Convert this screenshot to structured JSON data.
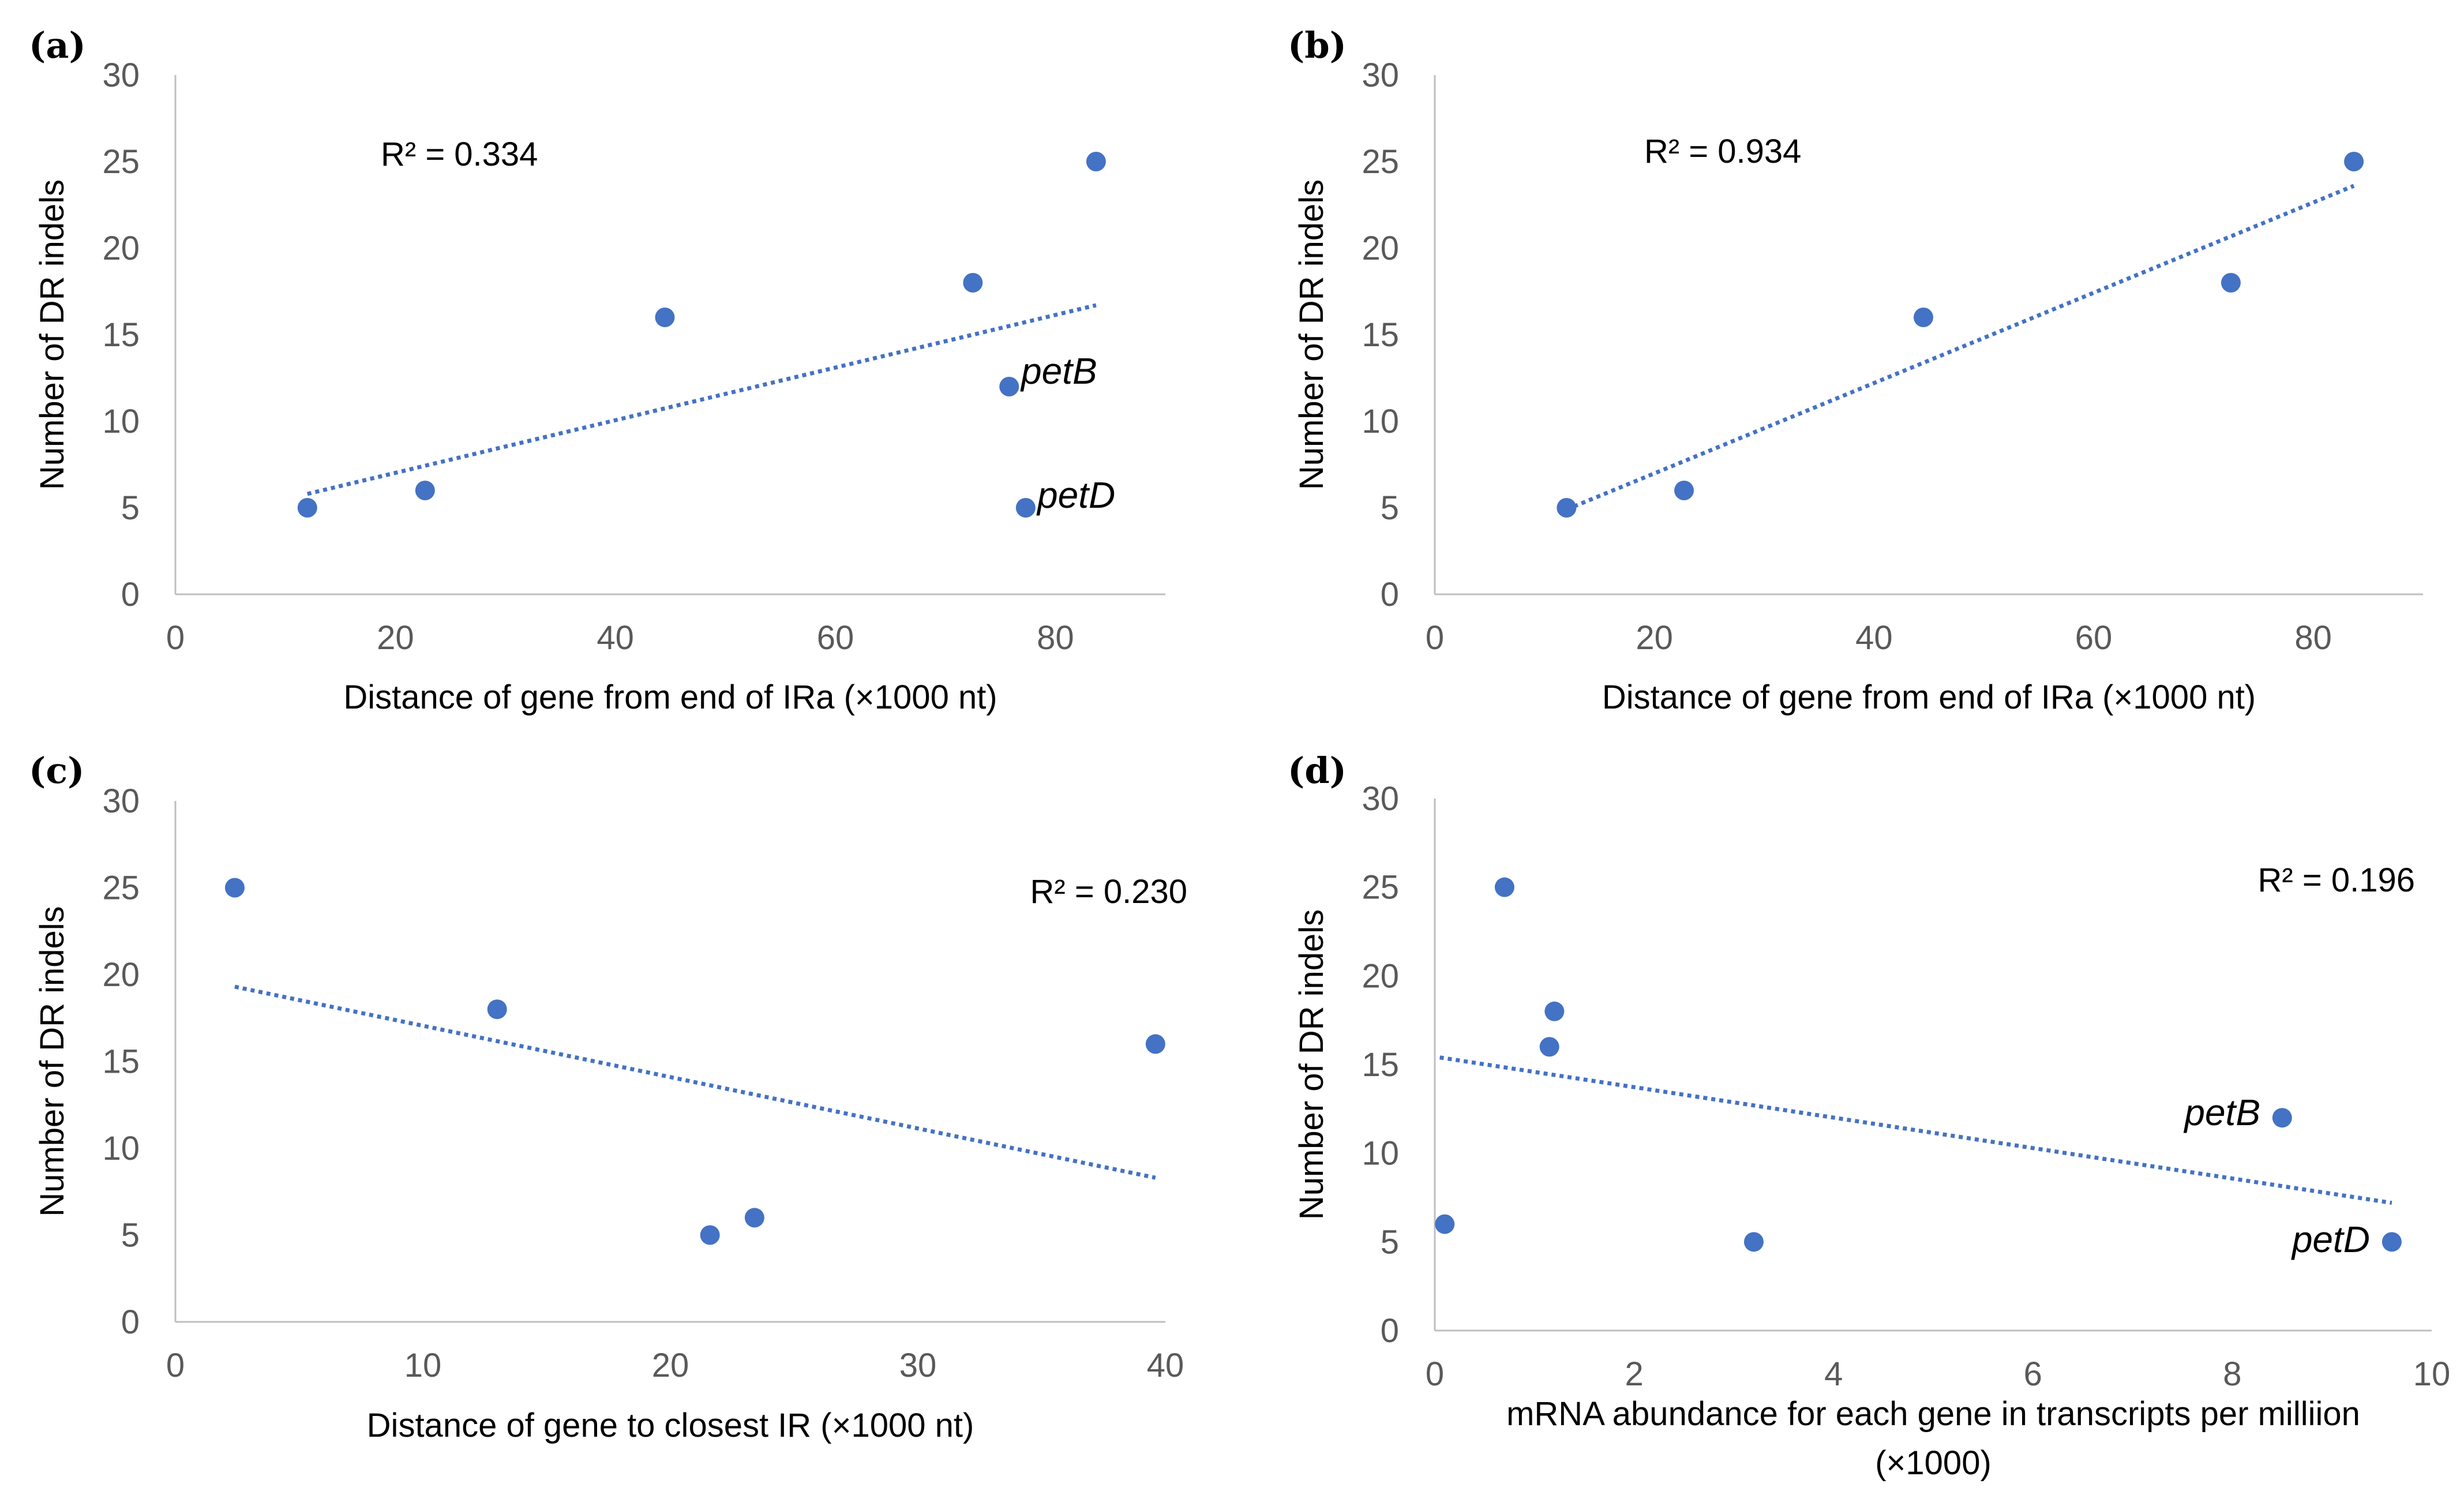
{
  "figure": {
    "point_color": "#4472c4",
    "trend_color": "#4472c4",
    "axis_color": "#bfbfbf"
  },
  "chart_data": [
    {
      "type": "scatter",
      "panel": "(a)",
      "xlabel": "Distance of gene from end of IRa (×1000 nt)",
      "ylabel": "Number of DR indels",
      "xlim": [
        0,
        90
      ],
      "ylim": [
        0,
        30
      ],
      "xticks": [
        0,
        20,
        40,
        60,
        80
      ],
      "yticks": [
        0,
        5,
        10,
        15,
        20,
        25,
        30
      ],
      "grid": false,
      "points": [
        {
          "x": 12.0,
          "y": 5
        },
        {
          "x": 22.7,
          "y": 6
        },
        {
          "x": 44.5,
          "y": 16
        },
        {
          "x": 72.5,
          "y": 18
        },
        {
          "x": 83.7,
          "y": 25
        },
        {
          "x": 75.8,
          "y": 12,
          "label": "petB"
        },
        {
          "x": 77.3,
          "y": 5,
          "label": "petD"
        }
      ],
      "trendline": {
        "x": [
          12.0,
          83.7
        ],
        "y": [
          5.8,
          16.7
        ],
        "style": "dotted"
      },
      "r2_text": "R² = 0.334"
    },
    {
      "type": "scatter",
      "panel": "(b)",
      "xlabel": "Distance of gene from end of IRa (×1000 nt)",
      "ylabel": "Number of DR indels",
      "xlim": [
        0,
        90
      ],
      "ylim": [
        0,
        30
      ],
      "xticks": [
        0,
        20,
        40,
        60,
        80
      ],
      "yticks": [
        0,
        5,
        10,
        15,
        20,
        25,
        30
      ],
      "grid": false,
      "points": [
        {
          "x": 12.0,
          "y": 5
        },
        {
          "x": 22.7,
          "y": 6
        },
        {
          "x": 44.5,
          "y": 16
        },
        {
          "x": 72.5,
          "y": 18
        },
        {
          "x": 83.7,
          "y": 25
        }
      ],
      "trendline": {
        "x": [
          12.0,
          83.7
        ],
        "y": [
          4.9,
          23.6
        ],
        "style": "dotted"
      },
      "r2_text": "R² = 0.934"
    },
    {
      "type": "scatter",
      "panel": "(c)",
      "xlabel": "Distance of gene to closest IR (×1000 nt)",
      "ylabel": "Number of DR indels",
      "xlim": [
        0,
        40
      ],
      "ylim": [
        0,
        30
      ],
      "xticks": [
        0,
        10,
        20,
        30,
        40
      ],
      "yticks": [
        0,
        5,
        10,
        15,
        20,
        25,
        30
      ],
      "grid": false,
      "points": [
        {
          "x": 2.4,
          "y": 25
        },
        {
          "x": 13.0,
          "y": 18
        },
        {
          "x": 21.6,
          "y": 5
        },
        {
          "x": 23.4,
          "y": 6
        },
        {
          "x": 39.6,
          "y": 16
        }
      ],
      "trendline": {
        "x": [
          2.4,
          39.6
        ],
        "y": [
          19.3,
          8.3
        ],
        "style": "dotted"
      },
      "r2_text": "R² = 0.230"
    },
    {
      "type": "scatter",
      "panel": "(d)",
      "xlabel": "mRNA abundance for each gene in transcripts per milliion (×1000)",
      "xlabel_lines": [
        "mRNA abundance for each gene in transcripts per milliion",
        "(×1000)"
      ],
      "ylabel": "Number of DR indels",
      "xlim": [
        0,
        10
      ],
      "ylim": [
        0,
        30
      ],
      "xticks": [
        0,
        2,
        4,
        6,
        8,
        10
      ],
      "yticks": [
        0,
        5,
        10,
        15,
        20,
        25,
        30
      ],
      "grid": false,
      "points": [
        {
          "x": 0.1,
          "y": 6
        },
        {
          "x": 0.7,
          "y": 25
        },
        {
          "x": 1.15,
          "y": 16
        },
        {
          "x": 1.2,
          "y": 18
        },
        {
          "x": 3.2,
          "y": 5
        },
        {
          "x": 8.5,
          "y": 12,
          "label": "petB"
        },
        {
          "x": 9.6,
          "y": 5,
          "label": "petD"
        }
      ],
      "trendline": {
        "x": [
          0.05,
          9.6
        ],
        "y": [
          15.4,
          7.2
        ],
        "style": "dotted"
      },
      "r2_text": "R² = 0.196"
    }
  ]
}
